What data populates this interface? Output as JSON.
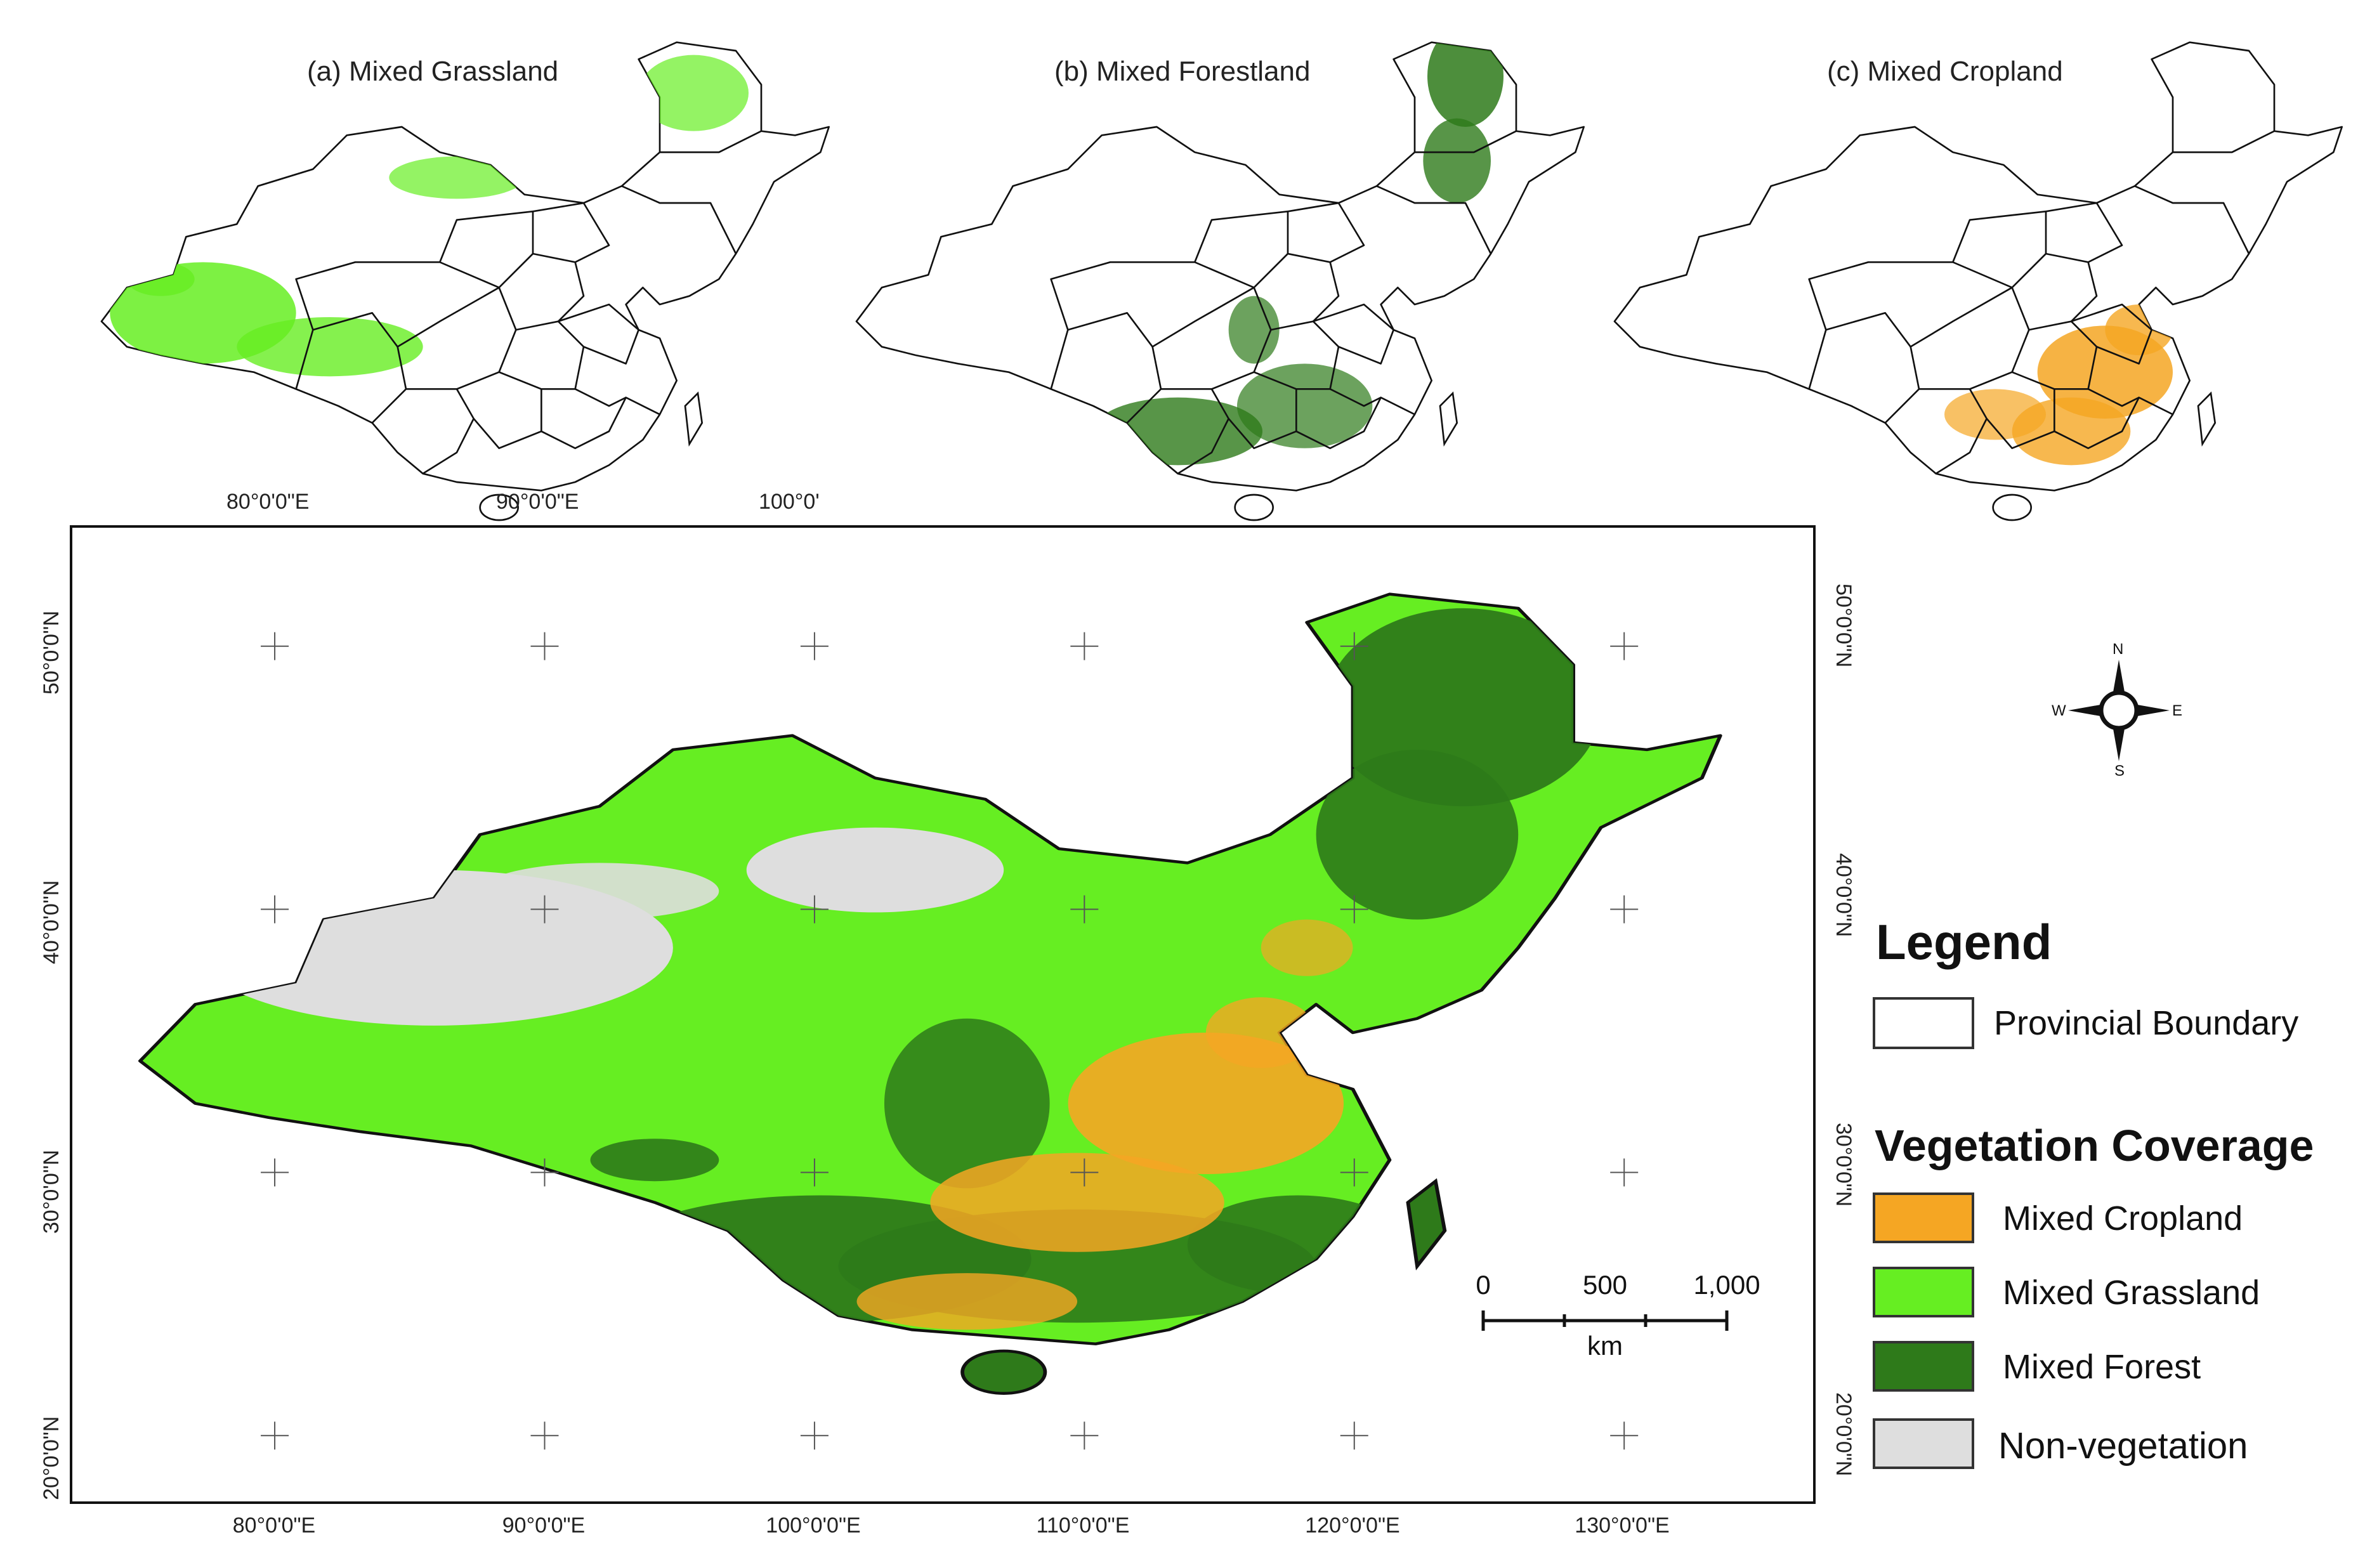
{
  "insets": [
    {
      "title": "(a) Mixed Grassland",
      "color": "#66ee22"
    },
    {
      "title": "(b) Mixed Forestland",
      "color": "#2e7a1a"
    },
    {
      "title": "(c) Mixed Cropland",
      "color": "#f5a623"
    }
  ],
  "top_axis_ticks": [
    "80°0'0\"E",
    "90°0'0\"E",
    "100°0'"
  ],
  "main_map": {
    "x_ticks": [
      "80°0'0\"E",
      "90°0'0\"E",
      "100°0'0\"E",
      "110°0'0\"E",
      "120°0'0\"E",
      "130°0'0\"E"
    ],
    "y_ticks": [
      "50°0'0\"N",
      "40°0'0\"N",
      "30°0'0\"N",
      "20°0'0\"N"
    ],
    "lon_range": [
      72.5,
      137
    ],
    "lat_range": [
      17.5,
      54.5
    ]
  },
  "north_arrow": {
    "n": "N",
    "s": "S",
    "e": "E",
    "w": "W"
  },
  "scale_bar": {
    "labels": [
      "0",
      "500",
      "1,000"
    ],
    "unit": "km"
  },
  "legend": {
    "title": "Legend",
    "boundary_label": "Provincial Boundary",
    "coverage_title": "Vegetation Coverage",
    "items": [
      {
        "label": "Mixed Cropland",
        "color": "#f5a623"
      },
      {
        "label": "Mixed Grassland",
        "color": "#66ee22"
      },
      {
        "label": "Mixed Forest",
        "color": "#2e7a1a"
      },
      {
        "label": "Non-vegetation",
        "color": "#dedede"
      }
    ]
  },
  "colors": {
    "cropland": "#f5a623",
    "grassland": "#66ee22",
    "forest": "#2e7a1a",
    "nonveg": "#dedede",
    "boundary": "#111111"
  }
}
